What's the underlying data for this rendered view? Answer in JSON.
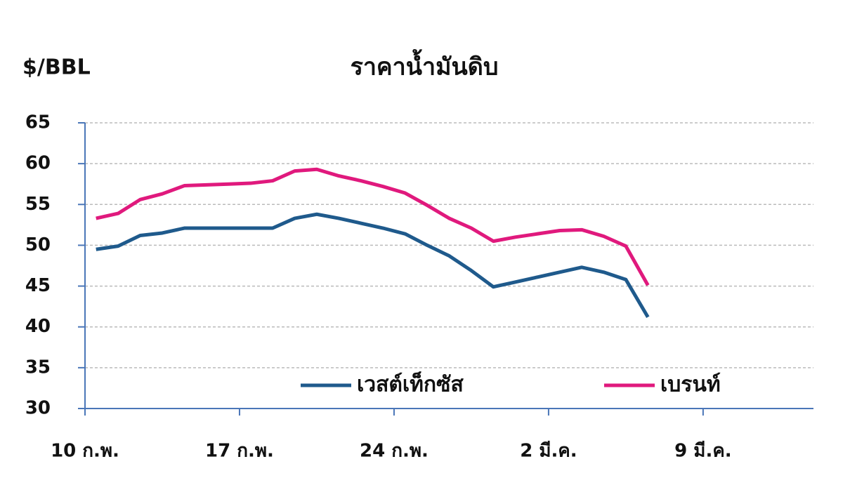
{
  "chart_data": {
    "type": "line",
    "title": "ราคาน้ำมันดิบ",
    "y_label": "$/BBL",
    "categories": [
      "10 ก.พ.",
      null,
      null,
      null,
      null,
      null,
      null,
      "17 ก.พ.",
      null,
      null,
      null,
      null,
      null,
      null,
      "24 ก.พ.",
      null,
      null,
      null,
      null,
      null,
      null,
      "2 มี.ค.",
      null,
      null,
      null,
      null,
      null,
      null,
      "9 มี.ค.",
      null,
      null,
      null,
      null
    ],
    "series": [
      {
        "name": "เวสต์เท็กซัส",
        "color": "#1f5a8c",
        "values": [
          49.5,
          49.9,
          51.2,
          51.5,
          52.1,
          52.1,
          52.1,
          52.1,
          52.1,
          53.3,
          53.8,
          53.3,
          52.7,
          52.1,
          51.4,
          50.0,
          48.7,
          46.9,
          44.9,
          45.5,
          46.1,
          46.7,
          47.3,
          46.7,
          45.8,
          41.2,
          null,
          null,
          null,
          null,
          null,
          null,
          null
        ]
      },
      {
        "name": "เบรนท์",
        "color": "#e0197d",
        "values": [
          53.3,
          53.9,
          55.6,
          56.3,
          57.3,
          57.4,
          57.5,
          57.6,
          57.9,
          59.1,
          59.3,
          58.5,
          57.9,
          57.2,
          56.4,
          54.9,
          53.3,
          52.1,
          50.5,
          51.0,
          51.4,
          51.8,
          51.9,
          51.1,
          49.9,
          45.1,
          null,
          null,
          null,
          null,
          null,
          null,
          null
        ]
      }
    ],
    "ylim": [
      30,
      65
    ],
    "yticks": [
      30,
      35,
      40,
      45,
      50,
      55,
      60,
      65
    ],
    "grid": true
  }
}
